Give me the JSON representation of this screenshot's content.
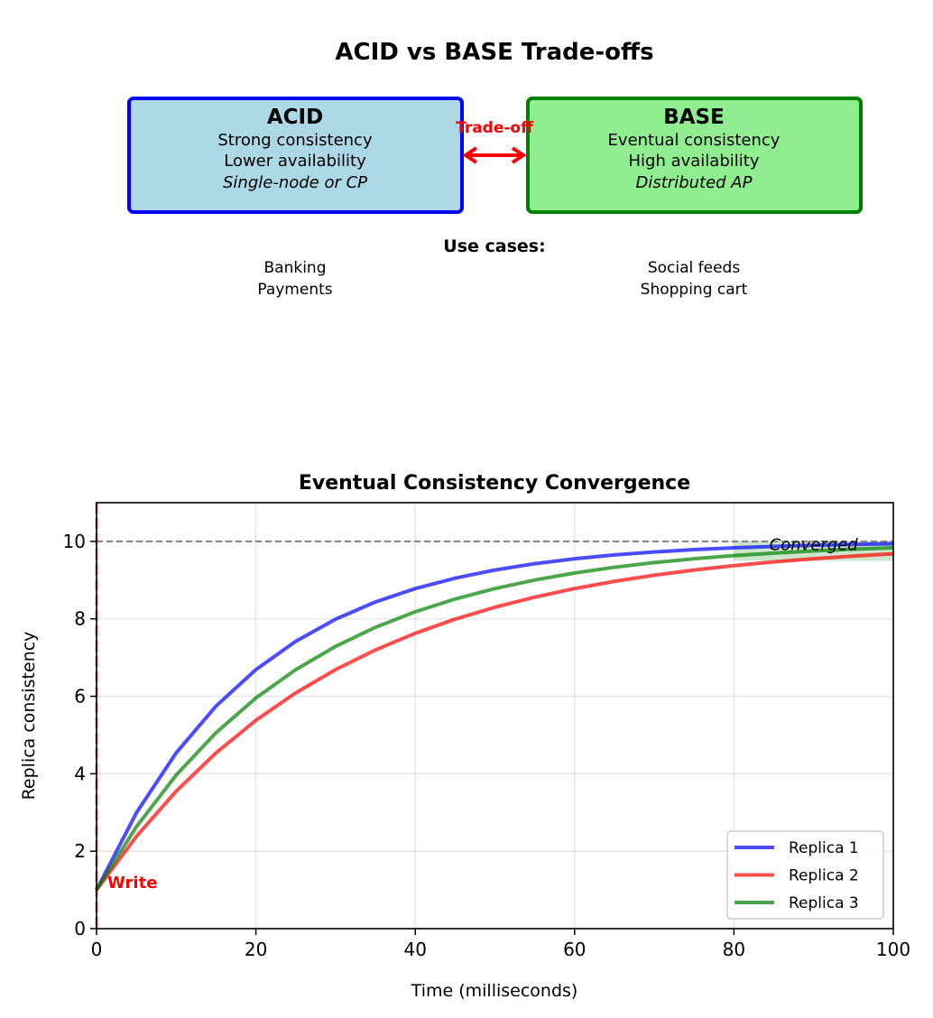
{
  "title": "ACID vs BASE Trade-offs",
  "acid": {
    "heading": "ACID",
    "lines": [
      "Strong consistency",
      "Lower availability"
    ],
    "italic": "Single-node or CP",
    "fill": "#add8e6",
    "stroke": "#0000ff"
  },
  "base": {
    "heading": "BASE",
    "lines": [
      "Eventual consistency",
      "High availability"
    ],
    "italic": "Distributed AP",
    "fill": "#90ee90",
    "stroke": "#008000"
  },
  "tradeoff_label": "Trade-off",
  "use_cases": {
    "heading": "Use cases:",
    "acid": [
      "Banking",
      "Payments"
    ],
    "base": [
      "Social feeds",
      "Shopping cart"
    ]
  },
  "chart_data": {
    "type": "line",
    "title": "Eventual Consistency Convergence",
    "xlabel": "Time (milliseconds)",
    "ylabel": "Replica consistency",
    "xlim": [
      0,
      100
    ],
    "ylim": [
      0,
      11
    ],
    "xticks": [
      "0",
      "20",
      "40",
      "60",
      "80",
      "100"
    ],
    "yticks": [
      "0",
      "2",
      "4",
      "6",
      "8",
      "10"
    ],
    "grid": true,
    "legend": "bottom-right",
    "x": [
      0,
      5,
      10,
      15,
      20,
      25,
      30,
      35,
      40,
      45,
      50,
      55,
      60,
      65,
      70,
      75,
      80,
      85,
      90,
      95,
      100
    ],
    "series": [
      {
        "name": "Replica 1",
        "color": "#0000ff",
        "values": [
          1,
          2.991,
          4.541,
          5.749,
          6.689,
          7.421,
          7.992,
          8.436,
          8.782,
          9.051,
          9.261,
          9.425,
          9.552,
          9.651,
          9.728,
          9.788,
          9.835,
          9.871,
          9.9,
          9.922,
          9.939
        ]
      },
      {
        "name": "Replica 2",
        "color": "#ff0000",
        "values": [
          1,
          2.381,
          3.551,
          4.541,
          5.38,
          6.089,
          6.689,
          7.197,
          7.628,
          7.992,
          8.3,
          8.561,
          8.782,
          8.969,
          9.127,
          9.261,
          9.374,
          9.471,
          9.552,
          9.621,
          9.679
        ]
      },
      {
        "name": "Replica 3",
        "color": "#008000",
        "values": [
          1,
          2.632,
          3.967,
          5.061,
          5.956,
          6.689,
          7.289,
          7.781,
          8.183,
          8.512,
          8.782,
          9.003,
          9.184,
          9.332,
          9.453,
          9.552,
          9.633,
          9.699,
          9.754,
          9.799,
          9.835
        ]
      }
    ],
    "reference_line": {
      "y": 10
    },
    "write_marker": {
      "x": 0,
      "label": "Write"
    },
    "converged_region": {
      "x": [
        80,
        100
      ],
      "y": [
        9.5,
        10
      ],
      "label": "Converged"
    }
  }
}
